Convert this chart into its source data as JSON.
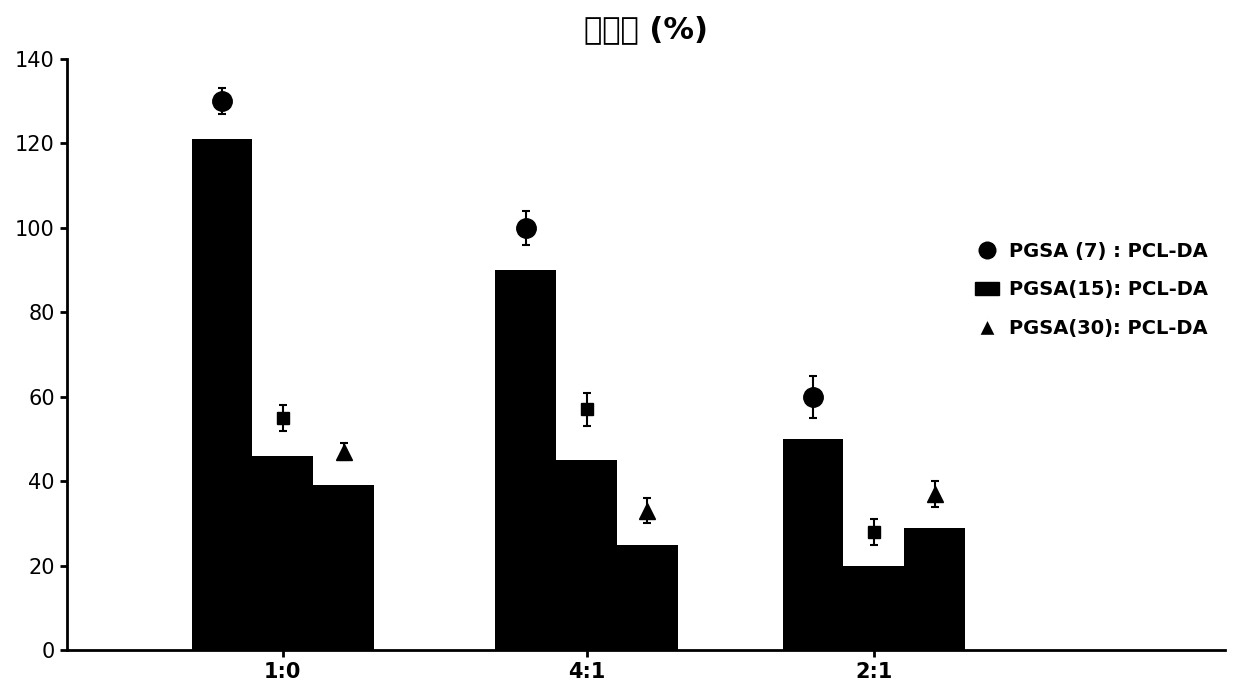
{
  "title": "延伸率 (%)",
  "title_fontsize": 22,
  "groups": [
    "1:0",
    "4:1",
    "2:1"
  ],
  "bar_values": [
    [
      121,
      46,
      39
    ],
    [
      90,
      45,
      25
    ],
    [
      50,
      20,
      29
    ]
  ],
  "marker_values": [
    [
      130,
      55,
      47
    ],
    [
      100,
      57,
      33
    ],
    [
      60,
      28,
      37
    ]
  ],
  "marker_errors": [
    [
      3,
      3,
      2
    ],
    [
      4,
      4,
      3
    ],
    [
      5,
      3,
      3
    ]
  ],
  "series_labels": [
    "PGSA (7) : PCL-DA",
    "PGSA(15): PCL-DA",
    "PGSA(30): PCL-DA"
  ],
  "bar_color": "#000000",
  "ylim": [
    0,
    140
  ],
  "yticks": [
    0,
    20,
    40,
    60,
    80,
    100,
    120,
    140
  ],
  "bar_width": 0.18,
  "background_color": "#ffffff",
  "tick_fontsize": 15,
  "legend_fontsize": 14,
  "group_centers": [
    0.35,
    1.25,
    2.1
  ]
}
